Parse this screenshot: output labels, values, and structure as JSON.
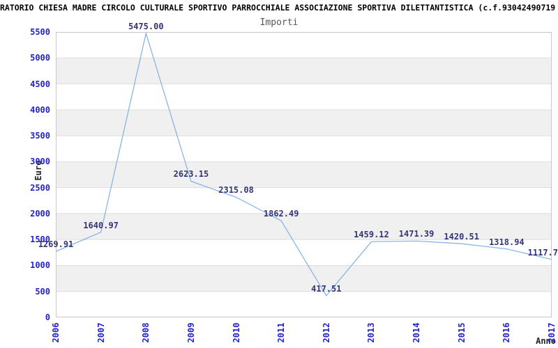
{
  "header": {
    "title": "RATORIO CHIESA MADRE CIRCOLO CULTURALE SPORTIVO PARROCCHIALE ASSOCIAZIONE SPORTIVA DILETTANTISTICA (c.f.93042490719",
    "title_note": "clipped at both image edges"
  },
  "chart_data": {
    "type": "line",
    "title": "Importi",
    "xlabel": "Anno",
    "ylabel": "Euro",
    "categories": [
      "2006",
      "2007",
      "2008",
      "2009",
      "2010",
      "2011",
      "2012",
      "2013",
      "2014",
      "2015",
      "2016",
      "2017"
    ],
    "values": [
      1269.91,
      1640.97,
      5475.0,
      2623.15,
      2315.08,
      1862.49,
      417.51,
      1459.12,
      1471.39,
      1420.51,
      1318.94,
      1117.7
    ],
    "point_labels": [
      "1269.91",
      "1640.97",
      "5475.00",
      "2623.15",
      "2315.08",
      "1862.49",
      "417.51",
      "1459.12",
      "1471.39",
      "1420.51",
      "1318.94",
      "1117.7"
    ],
    "ylim": [
      0,
      5500
    ],
    "y_tick_step": 500,
    "y_tick_labels": [
      "0",
      "500",
      "1000",
      "1500",
      "2000",
      "2500",
      "3000",
      "3500",
      "4000",
      "4500",
      "5000",
      "5500"
    ],
    "grid": "alternating horizontal bands every 500, gray on 500-1000, 1500-2000, 2500-3000, 3500-4000, 4500-5000",
    "legend": "none",
    "colors": {
      "line": "#7fb0e6",
      "tick_label": "#2222cc",
      "point_label": "#333377",
      "band_gray": "#f0f0f0",
      "band_white": "#ffffff",
      "gridline": "#dedede",
      "plot_border": "#c8c8c8",
      "title": "#000000",
      "subtitle": "#555555",
      "axis_title": "#222222"
    }
  }
}
